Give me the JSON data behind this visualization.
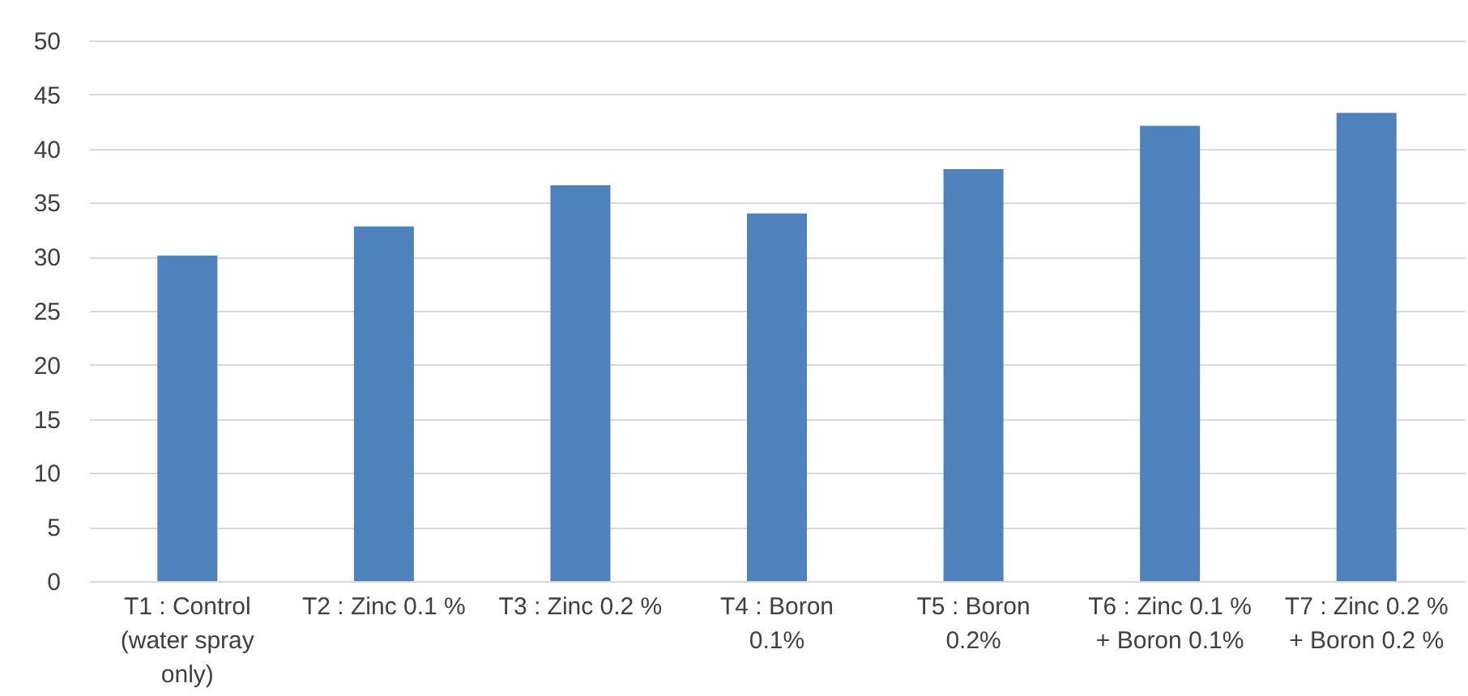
{
  "chart_data": {
    "type": "bar",
    "categories": [
      "T1 : Control\n(water spray\nonly)",
      "T2 : Zinc 0.1 %",
      "T3 : Zinc 0.2 %",
      "T4 : Boron\n0.1%",
      "T5 : Boron\n0.2%",
      "T6 : Zinc 0.1 %\n+ Boron 0.1%",
      "T7 : Zinc 0.2 %\n+ Boron 0.2 %"
    ],
    "values": [
      30.1,
      32.8,
      36.6,
      34.0,
      38.1,
      42.1,
      43.3
    ],
    "color": "#4f81bd",
    "ylim": [
      0,
      50
    ],
    "yticks": [
      0,
      5,
      10,
      15,
      20,
      25,
      30,
      35,
      40,
      45,
      50
    ],
    "grid": "y"
  }
}
